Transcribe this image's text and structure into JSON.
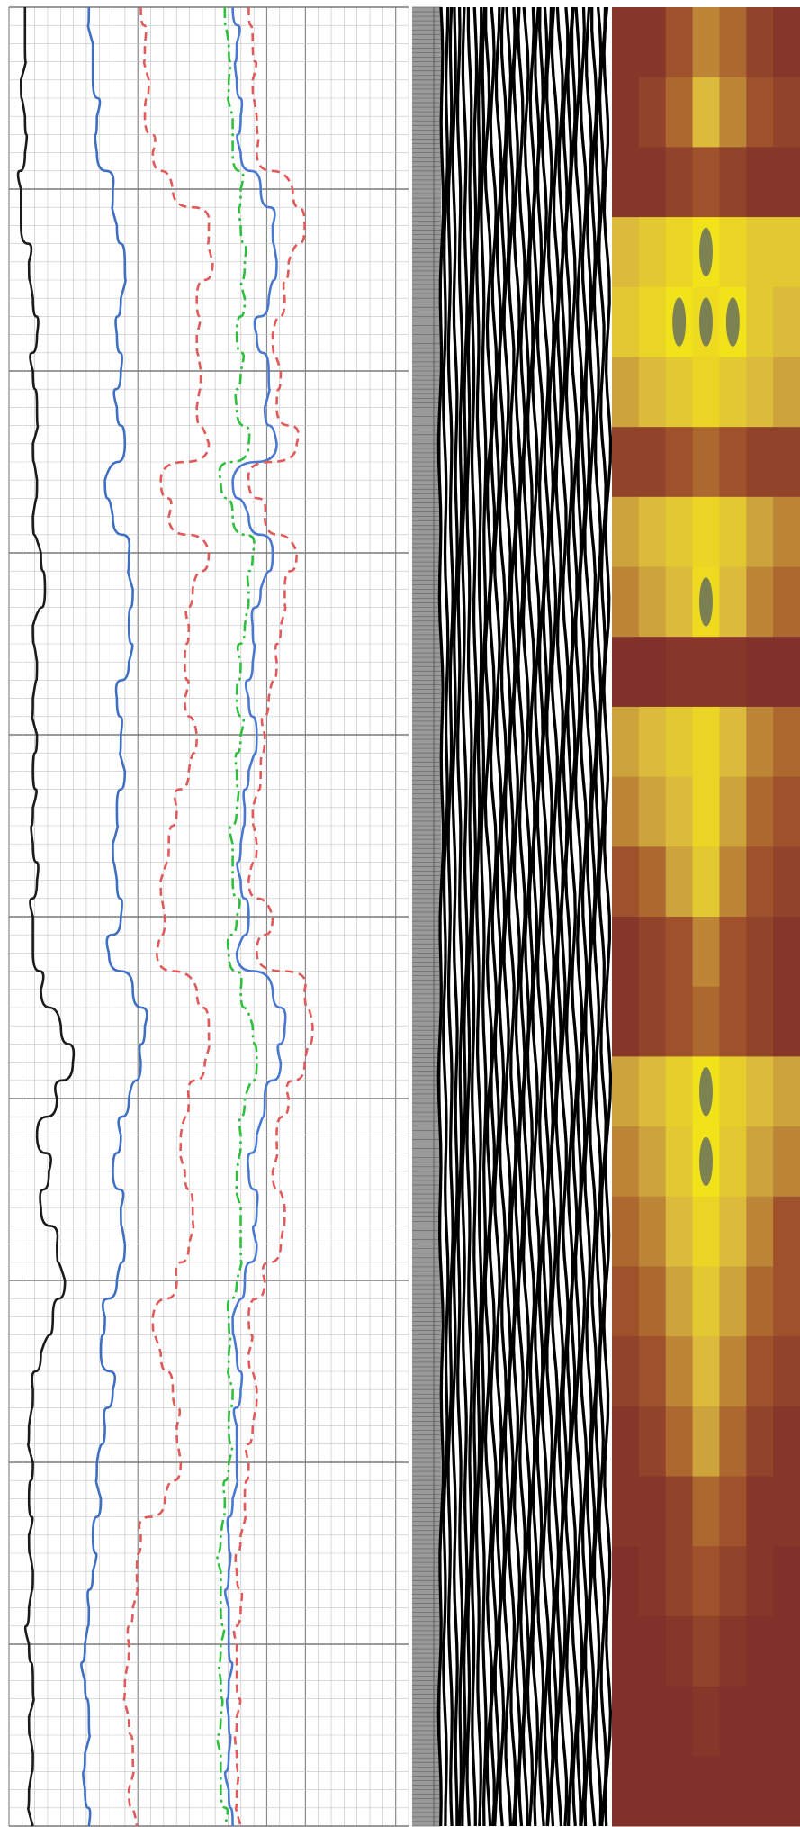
{
  "chart_data": {
    "type": "line",
    "title": "",
    "grid": true,
    "tracks": [
      {
        "kind": "curves",
        "name": "",
        "grid": true
      },
      {
        "kind": "depth-scale",
        "name": ""
      },
      {
        "kind": "variable-density",
        "name": ""
      },
      {
        "kind": "heatmap",
        "name": ""
      }
    ],
    "depth_range": [
      0,
      100
    ],
    "curve_range": [
      0,
      1
    ],
    "depth": [
      0,
      2,
      4,
      6,
      8,
      10,
      12,
      14,
      16,
      18,
      20,
      22,
      24,
      26,
      28,
      30,
      32,
      34,
      36,
      38,
      40,
      42,
      44,
      46,
      48,
      50,
      52,
      54,
      56,
      58,
      60,
      62,
      64,
      66,
      68,
      70,
      72,
      74,
      76,
      78,
      80,
      82,
      84,
      86,
      88,
      90,
      92,
      94,
      96,
      98,
      100
    ],
    "series": [
      {
        "name": "",
        "color": "#1a1a1a",
        "style": "solid",
        "values": [
          0.04,
          0.04,
          0.03,
          0.04,
          0.04,
          0.03,
          0.03,
          0.05,
          0.06,
          0.07,
          0.06,
          0.07,
          0.06,
          0.07,
          0.06,
          0.08,
          0.09,
          0.06,
          0.07,
          0.06,
          0.07,
          0.06,
          0.06,
          0.06,
          0.07,
          0.06,
          0.06,
          0.08,
          0.13,
          0.16,
          0.12,
          0.07,
          0.1,
          0.08,
          0.12,
          0.14,
          0.11,
          0.08,
          0.06,
          0.05,
          0.06,
          0.05,
          0.05,
          0.06,
          0.05,
          0.05,
          0.06,
          0.05,
          0.06,
          0.05,
          0.06
        ]
      },
      {
        "name": "",
        "color": "#3f6fc2",
        "style": "solid",
        "values": [
          0.2,
          0.21,
          0.21,
          0.22,
          0.22,
          0.26,
          0.27,
          0.29,
          0.28,
          0.27,
          0.28,
          0.27,
          0.29,
          0.24,
          0.26,
          0.3,
          0.31,
          0.3,
          0.3,
          0.27,
          0.28,
          0.29,
          0.27,
          0.26,
          0.27,
          0.28,
          0.25,
          0.31,
          0.34,
          0.33,
          0.3,
          0.28,
          0.26,
          0.28,
          0.29,
          0.27,
          0.24,
          0.23,
          0.26,
          0.24,
          0.22,
          0.23,
          0.21,
          0.21,
          0.2,
          0.19,
          0.19,
          0.2,
          0.19,
          0.19,
          0.2
        ]
      },
      {
        "name": "",
        "color": "#e05a5a",
        "style": "dashed",
        "values": [
          0.33,
          0.34,
          0.35,
          0.34,
          0.36,
          0.41,
          0.5,
          0.51,
          0.47,
          0.47,
          0.48,
          0.47,
          0.5,
          0.38,
          0.4,
          0.5,
          0.46,
          0.45,
          0.44,
          0.44,
          0.47,
          0.45,
          0.42,
          0.4,
          0.38,
          0.39,
          0.37,
          0.47,
          0.5,
          0.49,
          0.45,
          0.43,
          0.44,
          0.46,
          0.45,
          0.42,
          0.36,
          0.38,
          0.41,
          0.42,
          0.43,
          0.39,
          0.33,
          0.32,
          0.31,
          0.3,
          0.29,
          0.3,
          0.31,
          0.3,
          0.32
        ]
      },
      {
        "name": "",
        "color": "#2fbf3f",
        "style": "dashdot",
        "values": [
          0.54,
          0.55,
          0.55,
          0.56,
          0.56,
          0.58,
          0.58,
          0.59,
          0.59,
          0.57,
          0.58,
          0.57,
          0.6,
          0.53,
          0.56,
          0.61,
          0.6,
          0.59,
          0.58,
          0.57,
          0.58,
          0.57,
          0.57,
          0.56,
          0.56,
          0.57,
          0.55,
          0.58,
          0.61,
          0.62,
          0.59,
          0.58,
          0.57,
          0.58,
          0.58,
          0.57,
          0.55,
          0.55,
          0.56,
          0.55,
          0.55,
          0.54,
          0.53,
          0.53,
          0.53,
          0.53,
          0.53,
          0.53,
          0.53,
          0.53,
          0.54
        ]
      },
      {
        "name": "",
        "color": "#4a78d0",
        "style": "solid",
        "values": [
          0.56,
          0.57,
          0.57,
          0.58,
          0.58,
          0.63,
          0.66,
          0.67,
          0.65,
          0.62,
          0.65,
          0.64,
          0.67,
          0.56,
          0.6,
          0.66,
          0.63,
          0.61,
          0.61,
          0.6,
          0.62,
          0.6,
          0.59,
          0.58,
          0.58,
          0.6,
          0.57,
          0.66,
          0.69,
          0.68,
          0.64,
          0.62,
          0.6,
          0.62,
          0.62,
          0.59,
          0.56,
          0.57,
          0.58,
          0.57,
          0.57,
          0.56,
          0.55,
          0.55,
          0.55,
          0.55,
          0.55,
          0.55,
          0.55,
          0.55,
          0.56
        ]
      },
      {
        "name": "",
        "color": "#e05a5a",
        "style": "dashed",
        "values": [
          0.6,
          0.61,
          0.61,
          0.62,
          0.62,
          0.71,
          0.74,
          0.7,
          0.69,
          0.66,
          0.68,
          0.67,
          0.72,
          0.6,
          0.64,
          0.72,
          0.69,
          0.68,
          0.67,
          0.65,
          0.64,
          0.63,
          0.61,
          0.62,
          0.6,
          0.66,
          0.62,
          0.74,
          0.76,
          0.74,
          0.7,
          0.67,
          0.66,
          0.69,
          0.68,
          0.64,
          0.6,
          0.6,
          0.62,
          0.61,
          0.6,
          0.59,
          0.58,
          0.57,
          0.58,
          0.57,
          0.57,
          0.57,
          0.57,
          0.57,
          0.58
        ]
      }
    ],
    "vdl": {
      "colors": [
        "#000000",
        "#ffffff"
      ],
      "stripe_count": 36
    },
    "heatmap": {
      "colors": [
        "#7b2a2a",
        "#a2552b",
        "#d8b640",
        "#f2e21a",
        "#4a5a6a"
      ],
      "rows": [
        [
          0.1,
          0.1,
          0.3,
          0.5,
          0.4,
          0.2,
          0.1
        ],
        [
          0.1,
          0.2,
          0.4,
          0.7,
          0.5,
          0.3,
          0.2
        ],
        [
          0.1,
          0.1,
          0.2,
          0.3,
          0.2,
          0.1,
          0.1
        ],
        [
          0.7,
          0.8,
          0.9,
          1.0,
          0.9,
          0.8,
          0.8
        ],
        [
          0.8,
          0.9,
          1.0,
          0.95,
          1.0,
          0.8,
          0.7
        ],
        [
          0.6,
          0.7,
          0.8,
          0.9,
          0.8,
          0.7,
          0.6
        ],
        [
          0.2,
          0.2,
          0.3,
          0.4,
          0.3,
          0.2,
          0.2
        ],
        [
          0.6,
          0.7,
          0.8,
          0.9,
          0.8,
          0.6,
          0.5
        ],
        [
          0.5,
          0.6,
          0.7,
          0.95,
          0.7,
          0.5,
          0.4
        ],
        [
          0.05,
          0.05,
          0.1,
          0.1,
          0.1,
          0.05,
          0.05
        ],
        [
          0.6,
          0.7,
          0.8,
          0.9,
          0.7,
          0.5,
          0.4
        ],
        [
          0.5,
          0.6,
          0.7,
          0.9,
          0.6,
          0.4,
          0.3
        ],
        [
          0.3,
          0.4,
          0.6,
          0.8,
          0.5,
          0.3,
          0.2
        ],
        [
          0.1,
          0.2,
          0.3,
          0.5,
          0.3,
          0.2,
          0.1
        ],
        [
          0.1,
          0.2,
          0.3,
          0.4,
          0.3,
          0.2,
          0.1
        ],
        [
          0.6,
          0.7,
          0.85,
          1.0,
          0.85,
          0.7,
          0.6
        ],
        [
          0.5,
          0.6,
          0.8,
          1.0,
          0.8,
          0.6,
          0.5
        ],
        [
          0.4,
          0.5,
          0.7,
          0.9,
          0.7,
          0.5,
          0.3
        ],
        [
          0.3,
          0.4,
          0.6,
          0.8,
          0.6,
          0.4,
          0.3
        ],
        [
          0.2,
          0.3,
          0.5,
          0.7,
          0.5,
          0.3,
          0.2
        ],
        [
          0.1,
          0.2,
          0.4,
          0.6,
          0.4,
          0.2,
          0.1
        ],
        [
          0.1,
          0.1,
          0.2,
          0.4,
          0.3,
          0.1,
          0.1
        ],
        [
          0.05,
          0.1,
          0.2,
          0.3,
          0.2,
          0.1,
          0.05
        ],
        [
          0.05,
          0.05,
          0.1,
          0.2,
          0.1,
          0.05,
          0.05
        ],
        [
          0.05,
          0.05,
          0.05,
          0.1,
          0.05,
          0.05,
          0.05
        ],
        [
          0.05,
          0.05,
          0.05,
          0.05,
          0.05,
          0.05,
          0.05
        ]
      ]
    }
  }
}
